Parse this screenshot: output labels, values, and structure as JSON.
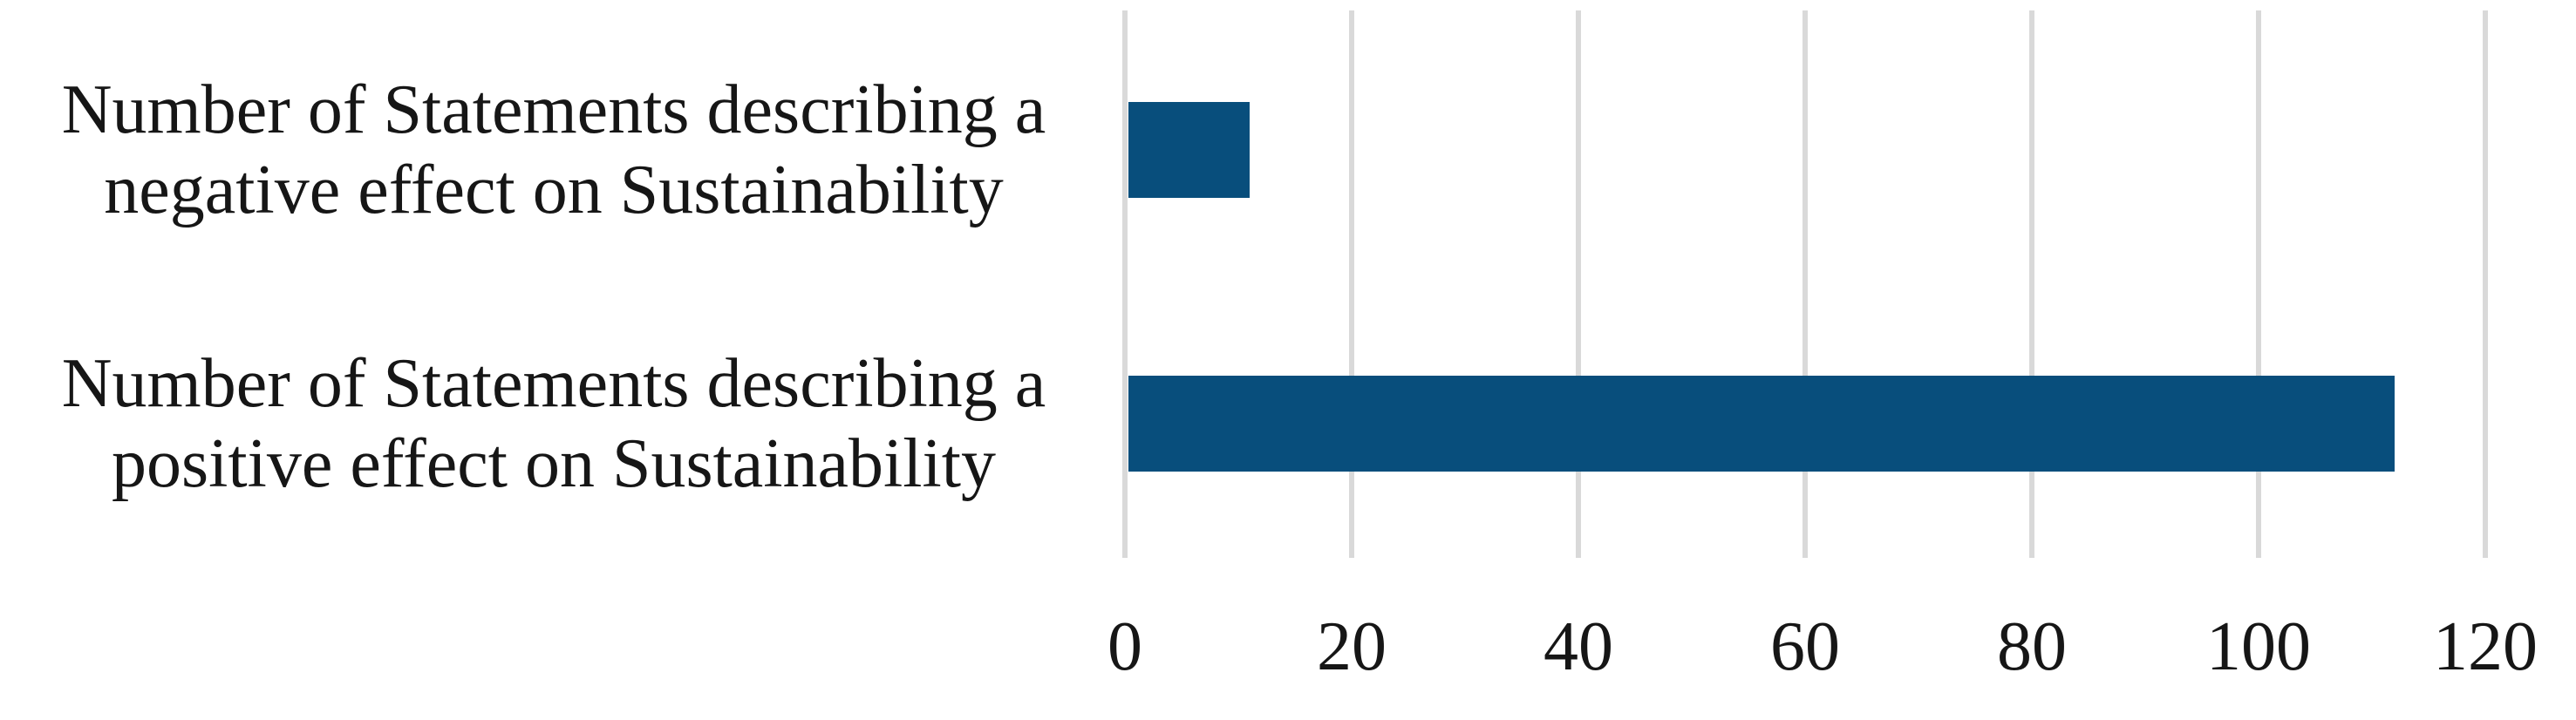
{
  "chart_data": {
    "type": "bar",
    "orientation": "horizontal",
    "title": "",
    "categories": [
      "Number of Statements describing a negative effect on Sustainability",
      "Number of Statements describing a positive effect on Sustainability"
    ],
    "rows": [
      {
        "slug": "negative-effect",
        "lines": [
          "Number of Statements describing a",
          "negative effect on Sustainability"
        ],
        "value": 11
      },
      {
        "slug": "positive-effect",
        "lines": [
          "Number of Statements describing a",
          "positive effect on Sustainability"
        ],
        "value": 112
      }
    ],
    "values": [
      11,
      112
    ],
    "xlabel": "",
    "ylabel": "",
    "xlim": [
      0,
      120
    ],
    "xticks": [
      0,
      20,
      40,
      60,
      80,
      100,
      120
    ],
    "grid": "vertical-only",
    "legend": "none",
    "colors": {
      "bar": "#084E7C",
      "gridline": "#D9D9D9",
      "text": "#161616",
      "background": "#FFFFFF"
    }
  }
}
